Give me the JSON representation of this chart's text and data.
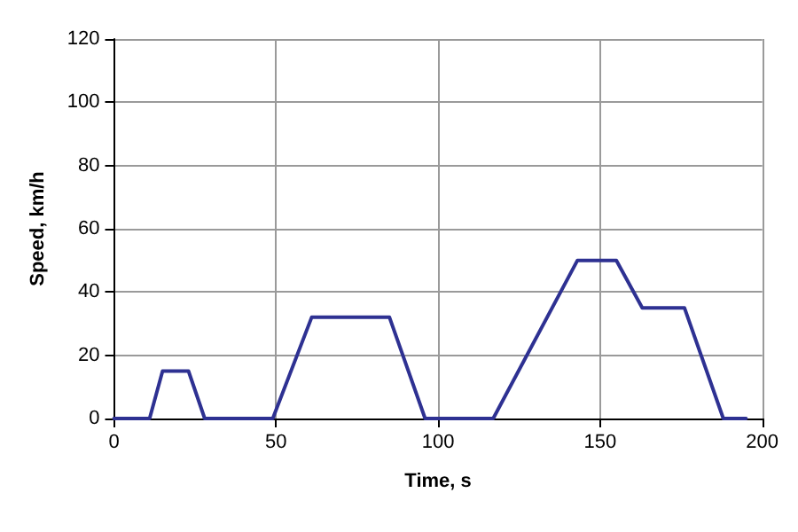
{
  "chart_data": {
    "type": "line",
    "xlabel": "Time, s",
    "ylabel": "Speed, km/h",
    "x": [
      0,
      11,
      15,
      23,
      28,
      49,
      61,
      85,
      96,
      117,
      143,
      155,
      163,
      176,
      188,
      195
    ],
    "series": [
      {
        "color": "#2e3192",
        "values": [
          0,
          0,
          15,
          15,
          0,
          0,
          32,
          32,
          0,
          0,
          50,
          50,
          35,
          35,
          0,
          0
        ]
      }
    ],
    "xlim": [
      0,
      200
    ],
    "xticks": [
      0,
      50,
      100,
      150,
      200
    ],
    "ylim": [
      0,
      120
    ],
    "yticks": [
      0,
      20,
      40,
      60,
      80,
      100,
      120
    ],
    "grid": true,
    "marker": "none",
    "line_style": "solid"
  }
}
